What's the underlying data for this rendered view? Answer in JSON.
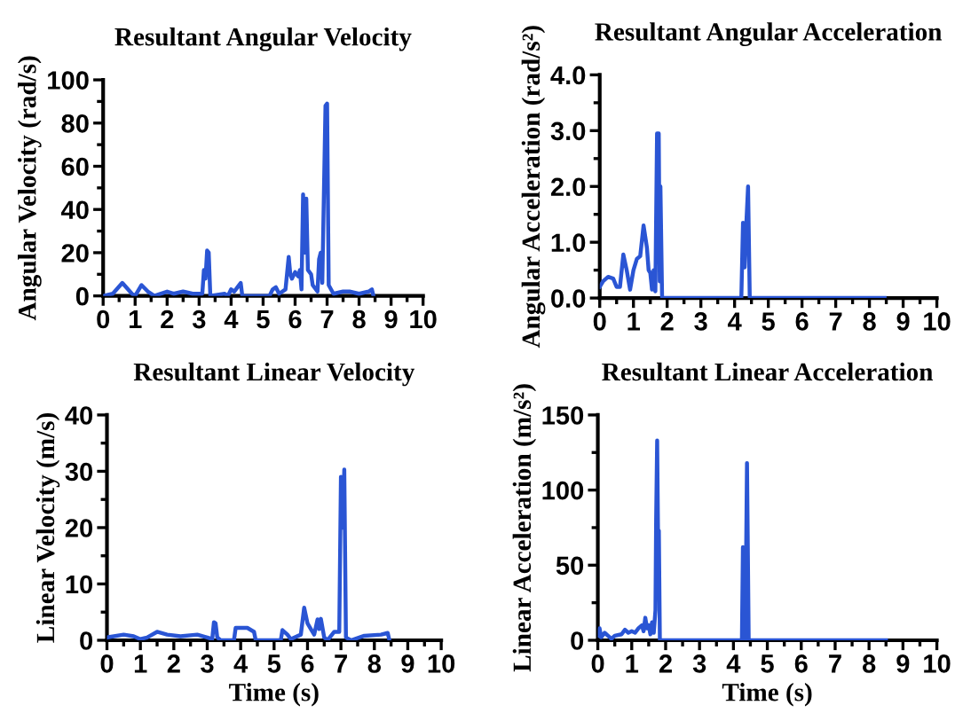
{
  "chart_data": [
    {
      "type": "line",
      "title": "Resultant Angular Velocity",
      "ylabel": "Angular Velocity (rad/s)",
      "grid": false,
      "marker": "none",
      "line_style": "solid",
      "xlim": [
        0,
        10
      ],
      "ylim": [
        0,
        100
      ],
      "xticks": [
        0,
        {
          "value": 0.5,
          "label": null
        },
        1,
        {
          "value": 1.5,
          "label": null
        },
        2,
        {
          "value": 2.5,
          "label": null
        },
        3,
        {
          "value": 3.5,
          "label": null
        },
        4,
        {
          "value": 4.5,
          "label": null
        },
        5,
        {
          "value": 5.5,
          "label": null
        },
        6,
        {
          "value": 6.5,
          "label": null
        },
        7,
        {
          "value": 7.5,
          "label": null
        },
        8,
        {
          "value": 8.5,
          "label": null
        },
        9,
        {
          "value": 9.5,
          "label": null
        },
        10
      ],
      "yticks": [
        0,
        {
          "value": 10,
          "label": null
        },
        20,
        {
          "value": 30,
          "label": null
        },
        40,
        {
          "value": 50,
          "label": null
        },
        60,
        {
          "value": 70,
          "label": null
        },
        80,
        {
          "value": 90,
          "label": null
        },
        100
      ],
      "series": [
        {
          "color": "#2a55d4",
          "x": [
            0,
            0.3,
            0.6,
            0.9,
            1.0,
            1.2,
            1.4,
            1.6,
            2.0,
            2.2,
            2.5,
            2.8,
            3.1,
            3.15,
            3.2,
            3.25,
            3.3,
            3.35,
            3.8,
            3.9,
            4.0,
            4.1,
            4.2,
            4.3,
            4.35,
            5.2,
            5.3,
            5.4,
            5.5,
            5.7,
            5.8,
            5.85,
            5.9,
            6.0,
            6.1,
            6.15,
            6.2,
            6.25,
            6.3,
            6.35,
            6.4,
            6.5,
            6.55,
            6.7,
            6.75,
            6.8,
            6.85,
            6.95,
            7.0,
            7.05,
            7.2,
            7.5,
            7.7,
            8.0,
            8.3,
            8.4,
            8.45
          ],
          "values": [
            0,
            1,
            6,
            1,
            0,
            5,
            2,
            0,
            2,
            1,
            2,
            1,
            1,
            12,
            8,
            21,
            20,
            0,
            1,
            0,
            3,
            2,
            4,
            6,
            0,
            0,
            3,
            4,
            1,
            3,
            18,
            10,
            8,
            11,
            9,
            12,
            3,
            47,
            20,
            45,
            12,
            10,
            5,
            2,
            17,
            20,
            6,
            88,
            89,
            5,
            1,
            2,
            2,
            1,
            2,
            3,
            0
          ]
        }
      ]
    },
    {
      "type": "line",
      "title": "Resultant Angular Acceleration",
      "ylabel": "Angular Acceleration (rad/s²)",
      "grid": false,
      "marker": "none",
      "line_style": "solid",
      "xlim": [
        0,
        10
      ],
      "ylim": [
        0,
        4
      ],
      "xticks": [
        0,
        {
          "value": 0.5,
          "label": null
        },
        1,
        {
          "value": 1.5,
          "label": null
        },
        2,
        {
          "value": 2.5,
          "label": null
        },
        3,
        {
          "value": 3.5,
          "label": null
        },
        4,
        {
          "value": 4.5,
          "label": null
        },
        5,
        {
          "value": 5.5,
          "label": null
        },
        6,
        {
          "value": 6.5,
          "label": null
        },
        7,
        {
          "value": 7.5,
          "label": null
        },
        8,
        {
          "value": 8.5,
          "label": null
        },
        9,
        {
          "value": 9.5,
          "label": null
        },
        10
      ],
      "yticks": [
        {
          "value": 0,
          "label": "0.0"
        },
        {
          "value": 0.5,
          "label": null
        },
        {
          "value": 1,
          "label": "1.0"
        },
        {
          "value": 1.5,
          "label": null
        },
        {
          "value": 2,
          "label": "2.0"
        },
        {
          "value": 2.5,
          "label": null
        },
        {
          "value": 3,
          "label": "3.0"
        },
        {
          "value": 3.5,
          "label": null
        },
        {
          "value": 4,
          "label": "4.0"
        }
      ],
      "series": [
        {
          "color": "#2a55d4",
          "x": [
            0,
            0.1,
            0.25,
            0.4,
            0.5,
            0.6,
            0.7,
            0.8,
            0.9,
            1.0,
            1.1,
            1.2,
            1.3,
            1.4,
            1.45,
            1.5,
            1.55,
            1.6,
            1.65,
            1.7,
            1.75,
            1.78,
            1.8,
            1.85,
            4.2,
            4.25,
            4.3,
            4.35,
            4.4,
            4.45,
            8.45
          ],
          "values": [
            0.2,
            0.3,
            0.38,
            0.35,
            0.2,
            0.2,
            0.78,
            0.5,
            0.15,
            0.5,
            0.7,
            0.75,
            1.3,
            0.9,
            0.5,
            0.45,
            0.15,
            0.5,
            0.12,
            2.95,
            2.95,
            0.3,
            2.0,
            0,
            0,
            1.35,
            0.55,
            1.35,
            2.0,
            0,
            0
          ]
        }
      ]
    },
    {
      "type": "line",
      "title": "Resultant Linear Velocity",
      "xlabel": "Time (s)",
      "ylabel": "Linear Velocity (m/s)",
      "grid": false,
      "marker": "none",
      "line_style": "solid",
      "xlim": [
        0,
        10
      ],
      "ylim": [
        0,
        40
      ],
      "xticks": [
        0,
        {
          "value": 0.5,
          "label": null
        },
        1,
        {
          "value": 1.5,
          "label": null
        },
        2,
        {
          "value": 2.5,
          "label": null
        },
        3,
        {
          "value": 3.5,
          "label": null
        },
        4,
        {
          "value": 4.5,
          "label": null
        },
        5,
        {
          "value": 5.5,
          "label": null
        },
        6,
        {
          "value": 6.5,
          "label": null
        },
        7,
        {
          "value": 7.5,
          "label": null
        },
        8,
        {
          "value": 8.5,
          "label": null
        },
        9,
        {
          "value": 9.5,
          "label": null
        },
        10
      ],
      "yticks": [
        0,
        {
          "value": 5,
          "label": null
        },
        10,
        {
          "value": 15,
          "label": null
        },
        20,
        {
          "value": 25,
          "label": null
        },
        30,
        {
          "value": 35,
          "label": null
        },
        40
      ],
      "series": [
        {
          "color": "#2a55d4",
          "x": [
            0,
            0.5,
            0.8,
            1.0,
            1.2,
            1.5,
            1.8,
            2.2,
            2.7,
            3.0,
            3.15,
            3.2,
            3.25,
            3.3,
            3.4,
            3.8,
            3.85,
            4.2,
            4.4,
            4.45,
            5.2,
            5.25,
            5.4,
            5.5,
            5.8,
            5.9,
            6.0,
            6.1,
            6.2,
            6.3,
            6.35,
            6.4,
            6.5,
            6.6,
            6.8,
            6.95,
            7.0,
            7.05,
            7.1,
            7.15,
            7.3,
            7.7,
            8.2,
            8.4,
            8.45
          ],
          "values": [
            0.5,
            1,
            0.7,
            0.2,
            0.5,
            1.5,
            1,
            0.7,
            1,
            0.5,
            0.2,
            3.2,
            3,
            0.5,
            0,
            0,
            2.2,
            2.2,
            1.5,
            0,
            0,
            1.8,
            1,
            0.2,
            1,
            5.8,
            3,
            2,
            1,
            3.7,
            2,
            3.8,
            0.5,
            0,
            1.5,
            1.5,
            29,
            20,
            30.3,
            0.5,
            0,
            0.8,
            1,
            1.3,
            0
          ]
        }
      ]
    },
    {
      "type": "line",
      "title": "Resultant Linear Acceleration",
      "xlabel": "Time (s)",
      "ylabel": "Linear Acceleration (m/s²)",
      "grid": false,
      "marker": "none",
      "line_style": "solid",
      "xlim": [
        0,
        10
      ],
      "ylim": [
        0,
        150
      ],
      "xticks": [
        0,
        {
          "value": 0.5,
          "label": null
        },
        1,
        {
          "value": 1.5,
          "label": null
        },
        2,
        {
          "value": 2.5,
          "label": null
        },
        3,
        {
          "value": 3.5,
          "label": null
        },
        4,
        {
          "value": 4.5,
          "label": null
        },
        5,
        {
          "value": 5.5,
          "label": null
        },
        6,
        {
          "value": 6.5,
          "label": null
        },
        7,
        {
          "value": 7.5,
          "label": null
        },
        8,
        {
          "value": 8.5,
          "label": null
        },
        9,
        {
          "value": 9.5,
          "label": null
        },
        10
      ],
      "yticks": [
        0,
        {
          "value": 25,
          "label": null
        },
        50,
        {
          "value": 75,
          "label": null
        },
        100,
        {
          "value": 125,
          "label": null
        },
        150
      ],
      "series": [
        {
          "color": "#2a55d4",
          "x": [
            0,
            0.05,
            0.1,
            0.2,
            0.3,
            0.4,
            0.5,
            0.7,
            0.8,
            0.9,
            1.0,
            1.1,
            1.2,
            1.3,
            1.35,
            1.4,
            1.45,
            1.5,
            1.55,
            1.6,
            1.65,
            1.7,
            1.72,
            1.75,
            1.78,
            1.8,
            1.83,
            4.25,
            4.28,
            4.32,
            4.35,
            4.4,
            4.45,
            8.5
          ],
          "values": [
            3,
            8,
            2,
            5,
            3,
            1,
            3,
            4,
            7,
            5,
            6,
            5,
            8,
            10,
            6,
            15,
            8,
            10,
            4,
            12,
            5,
            20,
            80,
            133,
            60,
            73,
            0,
            0,
            62,
            55,
            0,
            118,
            0,
            0
          ]
        }
      ]
    }
  ]
}
